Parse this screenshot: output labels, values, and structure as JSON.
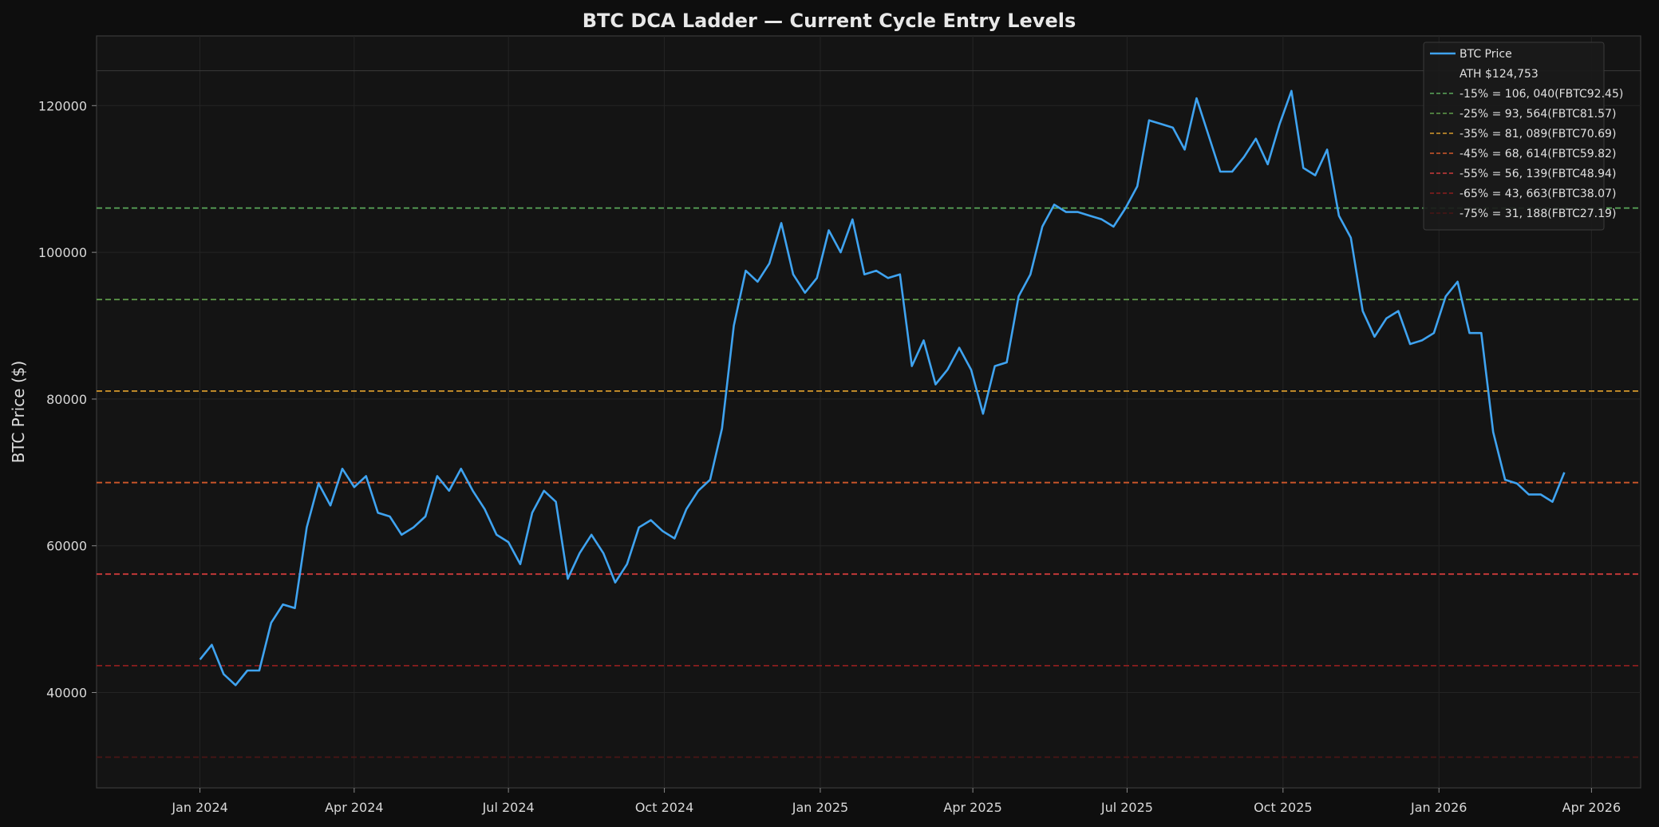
{
  "chart_data": {
    "type": "line",
    "title": "BTC DCA Ladder — Current Cycle Entry Levels",
    "xlabel": "",
    "ylabel": "BTC Price ($)",
    "xlim": [
      "2023-11-01",
      "2026-04-30"
    ],
    "ylim": [
      27000,
      129500
    ],
    "grid": true,
    "legend_position": "top-right",
    "y_ticks": [
      40000,
      60000,
      80000,
      100000,
      120000
    ],
    "y_tick_labels": [
      "40000",
      "60000",
      "80000",
      "100000",
      "120000"
    ],
    "x_ticks": [
      "2024-01-01",
      "2024-04-01",
      "2024-07-01",
      "2024-10-01",
      "2025-01-01",
      "2025-04-01",
      "2025-07-01",
      "2025-10-01",
      "2026-01-01",
      "2026-04-01"
    ],
    "x_tick_labels": [
      "Jan 2024",
      "Apr 2024",
      "Jul 2024",
      "Oct 2024",
      "Jan 2025",
      "Apr 2025",
      "Jul 2025",
      "Oct 2025",
      "Jan 2026",
      "Apr 2026"
    ],
    "series": [
      {
        "name": "BTC Price",
        "color": "#3fa3f0",
        "x": [
          "2024-01-01",
          "2024-01-08",
          "2024-01-15",
          "2024-01-22",
          "2024-01-29",
          "2024-02-05",
          "2024-02-12",
          "2024-02-19",
          "2024-02-26",
          "2024-03-04",
          "2024-03-11",
          "2024-03-18",
          "2024-03-25",
          "2024-04-01",
          "2024-04-08",
          "2024-04-15",
          "2024-04-22",
          "2024-04-29",
          "2024-05-06",
          "2024-05-13",
          "2024-05-20",
          "2024-05-27",
          "2024-06-03",
          "2024-06-10",
          "2024-06-17",
          "2024-06-24",
          "2024-07-01",
          "2024-07-08",
          "2024-07-15",
          "2024-07-22",
          "2024-07-29",
          "2024-08-05",
          "2024-08-12",
          "2024-08-19",
          "2024-08-26",
          "2024-09-02",
          "2024-09-09",
          "2024-09-16",
          "2024-09-23",
          "2024-09-30",
          "2024-10-07",
          "2024-10-14",
          "2024-10-21",
          "2024-10-28",
          "2024-11-04",
          "2024-11-11",
          "2024-11-18",
          "2024-11-25",
          "2024-12-02",
          "2024-12-09",
          "2024-12-16",
          "2024-12-23",
          "2024-12-30",
          "2025-01-06",
          "2025-01-13",
          "2025-01-20",
          "2025-01-27",
          "2025-02-03",
          "2025-02-10",
          "2025-02-17",
          "2025-02-24",
          "2025-03-03",
          "2025-03-10",
          "2025-03-17",
          "2025-03-24",
          "2025-03-31",
          "2025-04-07",
          "2025-04-14",
          "2025-04-21",
          "2025-04-28",
          "2025-05-05",
          "2025-05-12",
          "2025-05-19",
          "2025-05-26",
          "2025-06-02",
          "2025-06-09",
          "2025-06-16",
          "2025-06-23",
          "2025-06-30",
          "2025-07-07",
          "2025-07-14",
          "2025-07-21",
          "2025-07-28",
          "2025-08-04",
          "2025-08-11",
          "2025-08-18",
          "2025-08-25",
          "2025-09-01",
          "2025-09-08",
          "2025-09-15",
          "2025-09-22",
          "2025-09-29",
          "2025-10-06",
          "2025-10-13",
          "2025-10-20",
          "2025-10-27",
          "2025-11-03",
          "2025-11-10",
          "2025-11-17",
          "2025-11-24",
          "2025-12-01",
          "2025-12-08",
          "2025-12-15",
          "2025-12-22",
          "2025-12-29",
          "2026-01-05",
          "2026-01-12",
          "2026-01-19",
          "2026-01-26",
          "2026-02-02",
          "2026-02-09",
          "2026-02-16",
          "2026-02-23",
          "2026-03-02",
          "2026-03-09",
          "2026-03-16"
        ],
        "values": [
          44500,
          46500,
          42500,
          41000,
          43000,
          43000,
          49500,
          52000,
          51500,
          62500,
          68500,
          65500,
          70500,
          68000,
          69500,
          64500,
          64000,
          61500,
          62500,
          64000,
          69500,
          67500,
          70500,
          67500,
          65000,
          61500,
          60500,
          57500,
          64500,
          67500,
          66000,
          55500,
          59000,
          61500,
          59000,
          55000,
          57500,
          62500,
          63500,
          62000,
          61000,
          65000,
          67500,
          69000,
          76000,
          90000,
          97500,
          96000,
          98500,
          104000,
          97000,
          94500,
          96500,
          103000,
          100000,
          104500,
          97000,
          97500,
          96500,
          97000,
          84500,
          88000,
          82000,
          84000,
          87000,
          84000,
          78000,
          84500,
          85000,
          94000,
          97000,
          103500,
          106500,
          105500,
          105500,
          105000,
          104500,
          103500,
          106000,
          109000,
          118000,
          117500,
          117000,
          114000,
          121000,
          116000,
          111000,
          111000,
          113000,
          115500,
          112000,
          117500,
          122000,
          111500,
          110500,
          114000,
          105000,
          102000,
          92000,
          88500,
          91000,
          92000,
          87500,
          88000,
          89000,
          94000,
          96000,
          89000,
          89000,
          75500,
          69000,
          68500,
          67000,
          67000,
          66000,
          70000
        ]
      }
    ],
    "reference_lines": [
      {
        "name": "ATH $124,753",
        "value": 124753,
        "color": "#3a3a3a",
        "style": "solid",
        "label": "ATH $124,753"
      },
      {
        "name": "-15%",
        "value": 106040,
        "color": "#5aa85a",
        "style": "dashed",
        "label": "-15% = 106, 040(FBTC92.45)"
      },
      {
        "name": "-25%",
        "value": 93564,
        "color": "#5f9d4a",
        "style": "dashed",
        "label": "-25% = 93, 564(FBTC81.57)"
      },
      {
        "name": "-35%",
        "value": 81089,
        "color": "#d79a2c",
        "style": "dashed",
        "label": "-35% = 81, 089(FBTC70.69)"
      },
      {
        "name": "-45%",
        "value": 68614,
        "color": "#d2582a",
        "style": "dashed",
        "label": "-45% = 68, 614(FBTC59.82)"
      },
      {
        "name": "-55%",
        "value": 56139,
        "color": "#cc3a3a",
        "style": "dashed",
        "label": "-55% = 56, 139(FBTC48.94)"
      },
      {
        "name": "-65%",
        "value": 43663,
        "color": "#8c1e1e",
        "style": "dashed",
        "label": "-65% = 43, 663(FBTC38.07)"
      },
      {
        "name": "-75%",
        "value": 31188,
        "color": "#4a1616",
        "style": "dashed",
        "label": "-75% = 31, 188(FBTC27.19)"
      }
    ]
  },
  "legend": {
    "items": [
      {
        "label": "BTC Price",
        "color": "#3fa3f0",
        "style": "solid"
      },
      {
        "label": "ATH $124,753",
        "color": "#3a3a3a",
        "style": "none"
      },
      {
        "label": "-15% = 106, 040(FBTC92.45)",
        "color": "#5aa85a",
        "style": "dashed"
      },
      {
        "label": "-25% = 93, 564(FBTC81.57)",
        "color": "#5f9d4a",
        "style": "dashed"
      },
      {
        "label": "-35% = 81, 089(FBTC70.69)",
        "color": "#d79a2c",
        "style": "dashed"
      },
      {
        "label": "-45% = 68, 614(FBTC59.82)",
        "color": "#d2582a",
        "style": "dashed"
      },
      {
        "label": "-55% = 56, 139(FBTC48.94)",
        "color": "#cc3a3a",
        "style": "dashed"
      },
      {
        "label": "-65% = 43, 663(FBTC38.07)",
        "color": "#8c1e1e",
        "style": "dashed"
      },
      {
        "label": "-75% = 31, 188(FBTC27.19)",
        "color": "#4a1616",
        "style": "dashed"
      }
    ]
  },
  "colors": {
    "page_background": "#0e0e0e",
    "plot_background": "#141414",
    "grid": "#242424",
    "axis": "#3a3a3a",
    "text": "#d8d8d8"
  }
}
